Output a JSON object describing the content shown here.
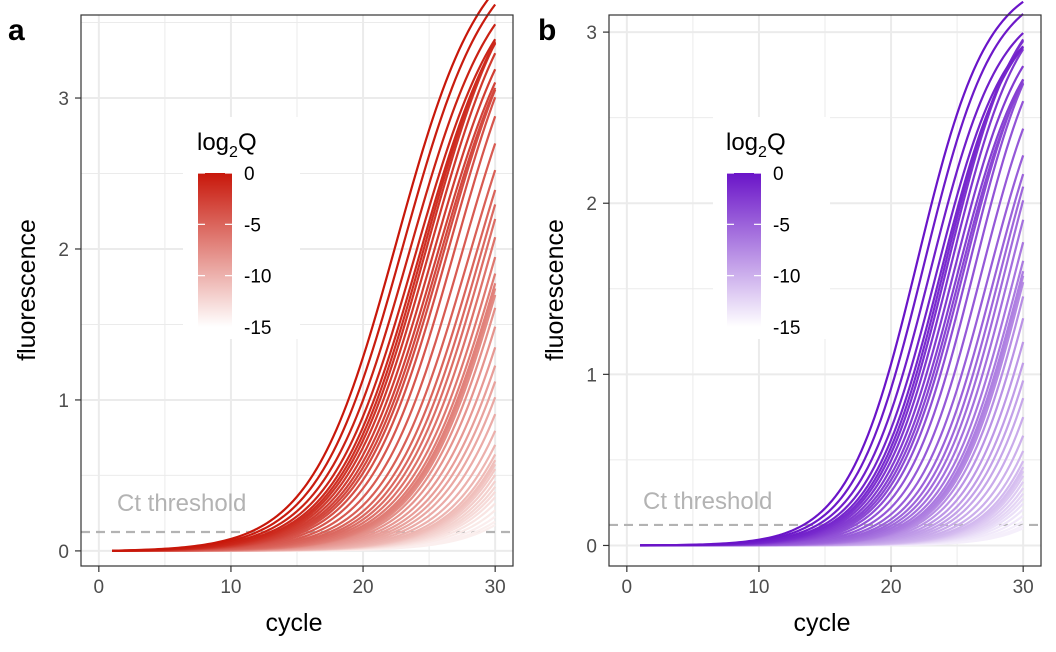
{
  "chart_data": [
    {
      "panel": "a",
      "type": "line",
      "xlabel": "cycle",
      "ylabel": "fluorescence",
      "xlim": [
        0,
        30
      ],
      "ylim": [
        -0.1,
        3.55
      ],
      "xticks": [
        0,
        10,
        20,
        30
      ],
      "yticks": [
        0,
        1,
        2,
        3
      ],
      "grid": true,
      "legend": {
        "title_main": "log",
        "title_sub": "2",
        "title_end": "Q",
        "labels": [
          "0",
          "-5",
          "-10",
          "-15"
        ],
        "values": [
          0,
          -5,
          -10,
          -15
        ],
        "position": "top-left-inside",
        "color_high": "#c8170a",
        "color_low": "#ffffff"
      },
      "threshold": {
        "value": 0.125,
        "label": "Ct threshold",
        "color": "#b3b3b3"
      },
      "curve_model": "logistic",
      "n_curves": 48,
      "series": {
        "asymptote_max": [
          4.0,
          3.8
        ],
        "midpoint_start": 22.5,
        "midpoint_end": 39.5,
        "slope": 0.31
      }
    },
    {
      "panel": "b",
      "type": "line",
      "xlabel": "cycle",
      "ylabel": "fluorescence",
      "xlim": [
        0,
        30
      ],
      "ylim": [
        -0.12,
        3.1
      ],
      "xticks": [
        0,
        10,
        20,
        30
      ],
      "yticks": [
        0,
        1,
        2,
        3
      ],
      "grid": true,
      "legend": {
        "title_main": "log",
        "title_sub": "2",
        "title_end": "Q",
        "labels": [
          "0",
          "-5",
          "-10",
          "-15"
        ],
        "values": [
          0,
          -5,
          -10,
          -15
        ],
        "position": "top-left-inside",
        "color_high": "#6a14c8",
        "color_low": "#ffffff"
      },
      "threshold": {
        "value": 0.12,
        "label": "Ct threshold",
        "color": "#b3b3b3"
      },
      "curve_model": "logistic",
      "n_curves": 48,
      "series": {
        "asymptote_max": [
          3.25,
          3.0
        ],
        "midpoint_start": 22.0,
        "midpoint_end": 38.5,
        "slope": 0.38
      }
    }
  ]
}
